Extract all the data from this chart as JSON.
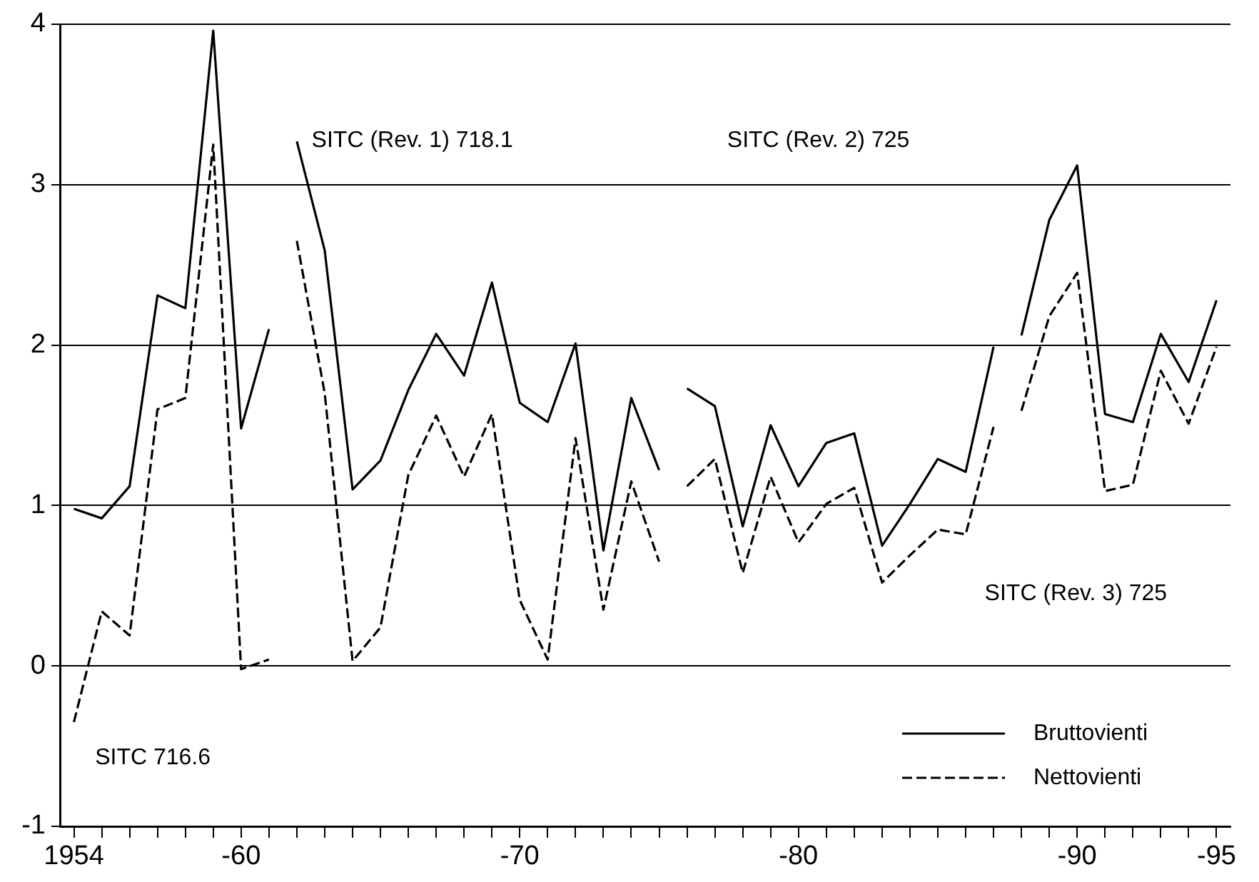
{
  "chart_data": {
    "type": "line",
    "categories": [
      "1954",
      null,
      null,
      null,
      null,
      null,
      "-60",
      null,
      null,
      null,
      null,
      null,
      null,
      null,
      null,
      null,
      "-70",
      null,
      null,
      null,
      null,
      null,
      null,
      null,
      null,
      null,
      "-80",
      null,
      null,
      null,
      null,
      null,
      null,
      null,
      null,
      null,
      "-90",
      null,
      null,
      null,
      null,
      "-95"
    ],
    "ylim": [
      -1,
      4
    ],
    "yticks": [
      -1,
      0,
      1,
      2,
      3,
      4
    ],
    "grid": "y",
    "legend": "bottom right",
    "marker": "none",
    "annotations": [
      "SITC 716.6",
      "SITC (Rev. 1) 718.1",
      "SITC (Rev. 2) 725",
      "SITC (Rev. 3) 725"
    ],
    "series": [
      {
        "name": "Bruttovienti",
        "color": "#000000",
        "line_style": "solid",
        "values": [
          0.98,
          0.92,
          1.12,
          2.31,
          2.23,
          3.96,
          1.48,
          2.1,
          null,
          null,
          null,
          null,
          null,
          null,
          null,
          null,
          null,
          null,
          null,
          null,
          null,
          null,
          null,
          null,
          null,
          null,
          null,
          null,
          null,
          null,
          null,
          null,
          null,
          null,
          null,
          null,
          null,
          null,
          null,
          null,
          null,
          null
        ]
      },
      {
        "color": "#000000",
        "line_style": "solid",
        "values": [
          null,
          null,
          null,
          null,
          null,
          null,
          null,
          null,
          3.27,
          2.59,
          1.1,
          1.28,
          1.72,
          2.07,
          1.81,
          2.39,
          1.64,
          1.52,
          2.01,
          0.72,
          1.67,
          1.22,
          null,
          null,
          null,
          null,
          null,
          null,
          null,
          null,
          null,
          null,
          null,
          null,
          null,
          null,
          null,
          null,
          null,
          null,
          null,
          null
        ]
      },
      {
        "color": "#000000",
        "line_style": "solid",
        "values": [
          null,
          null,
          null,
          null,
          null,
          null,
          null,
          null,
          null,
          null,
          null,
          null,
          null,
          null,
          null,
          null,
          null,
          null,
          null,
          null,
          null,
          null,
          1.73,
          1.62,
          0.87,
          1.5,
          1.12,
          1.39,
          1.45,
          0.75,
          1.01,
          1.29,
          1.21,
          1.99,
          null,
          null,
          null,
          null,
          null,
          null,
          null,
          null
        ]
      },
      {
        "color": "#000000",
        "line_style": "solid",
        "values": [
          null,
          null,
          null,
          null,
          null,
          null,
          null,
          null,
          null,
          null,
          null,
          null,
          null,
          null,
          null,
          null,
          null,
          null,
          null,
          null,
          null,
          null,
          null,
          null,
          null,
          null,
          null,
          null,
          null,
          null,
          null,
          null,
          null,
          null,
          2.06,
          2.78,
          3.12,
          1.57,
          1.52,
          2.07,
          1.77,
          2.28
        ]
      },
      {
        "name": "Nettovienti",
        "color": "#000000",
        "line_style": "dashed",
        "values": [
          -0.35,
          0.34,
          0.19,
          1.6,
          1.67,
          3.25,
          -0.02,
          0.04,
          null,
          null,
          null,
          null,
          null,
          null,
          null,
          null,
          null,
          null,
          null,
          null,
          null,
          null,
          null,
          null,
          null,
          null,
          null,
          null,
          null,
          null,
          null,
          null,
          null,
          null,
          null,
          null,
          null,
          null,
          null,
          null,
          null,
          null
        ]
      },
      {
        "color": "#000000",
        "line_style": "dashed",
        "values": [
          null,
          null,
          null,
          null,
          null,
          null,
          null,
          null,
          2.65,
          1.7,
          0.03,
          0.24,
          1.19,
          1.56,
          1.18,
          1.57,
          0.41,
          0.04,
          1.42,
          0.35,
          1.15,
          0.65,
          null,
          null,
          null,
          null,
          null,
          null,
          null,
          null,
          null,
          null,
          null,
          null,
          null,
          null,
          null,
          null,
          null,
          null,
          null,
          null
        ]
      },
      {
        "color": "#000000",
        "line_style": "dashed",
        "values": [
          null,
          null,
          null,
          null,
          null,
          null,
          null,
          null,
          null,
          null,
          null,
          null,
          null,
          null,
          null,
          null,
          null,
          null,
          null,
          null,
          null,
          null,
          1.12,
          1.29,
          0.58,
          1.18,
          0.77,
          1.01,
          1.11,
          0.52,
          0.69,
          0.85,
          0.82,
          1.49,
          null,
          null,
          null,
          null,
          null,
          null,
          null,
          null
        ]
      },
      {
        "color": "#000000",
        "line_style": "dashed",
        "values": [
          null,
          null,
          null,
          null,
          null,
          null,
          null,
          null,
          null,
          null,
          null,
          null,
          null,
          null,
          null,
          null,
          null,
          null,
          null,
          null,
          null,
          null,
          null,
          null,
          null,
          null,
          null,
          null,
          null,
          null,
          null,
          null,
          null,
          null,
          1.59,
          2.18,
          2.45,
          1.09,
          1.13,
          1.84,
          1.51,
          1.99
        ]
      }
    ]
  }
}
